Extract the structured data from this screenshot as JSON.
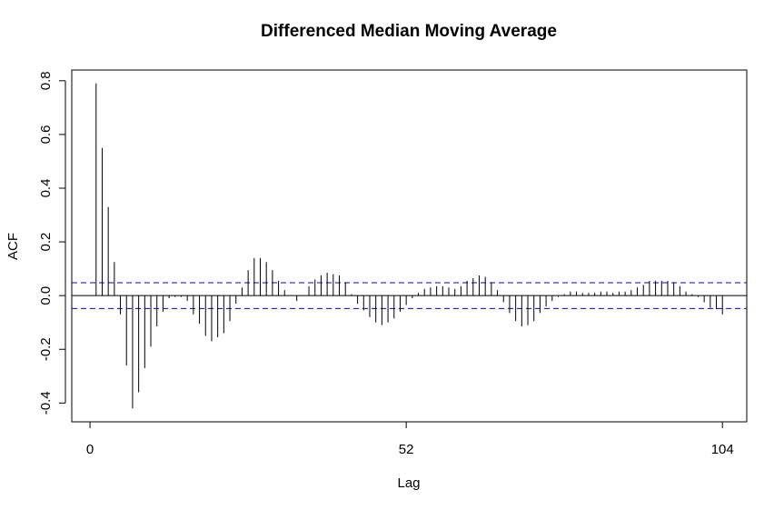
{
  "chart_data": {
    "type": "bar",
    "title": "Differenced Median Moving Average",
    "xlabel": "Lag",
    "ylabel": "ACF",
    "xlim": [
      -3,
      108
    ],
    "ylim": [
      -0.47,
      0.84
    ],
    "x_ticks": [
      0,
      52,
      104
    ],
    "y_ticks": [
      -0.4,
      -0.2,
      0.0,
      0.2,
      0.4,
      0.6,
      0.8
    ],
    "y_tick_labels": [
      "-0.4",
      "-0.2",
      "0.0",
      "0.2",
      "0.4",
      "0.6",
      "0.8"
    ],
    "zero_line": 0.0,
    "confidence_bound": 0.048,
    "colors": {
      "bars": "#000000",
      "bound_lines": "#0000cc",
      "frame": "#000000"
    },
    "lags": [
      1,
      2,
      3,
      4,
      5,
      6,
      7,
      8,
      9,
      10,
      11,
      12,
      13,
      14,
      15,
      16,
      17,
      18,
      19,
      20,
      21,
      22,
      23,
      24,
      25,
      26,
      27,
      28,
      29,
      30,
      31,
      32,
      33,
      34,
      35,
      36,
      37,
      38,
      39,
      40,
      41,
      42,
      43,
      44,
      45,
      46,
      47,
      48,
      49,
      50,
      51,
      52,
      53,
      54,
      55,
      56,
      57,
      58,
      59,
      60,
      61,
      62,
      63,
      64,
      65,
      66,
      67,
      68,
      69,
      70,
      71,
      72,
      73,
      74,
      75,
      76,
      77,
      78,
      79,
      80,
      81,
      82,
      83,
      84,
      85,
      86,
      87,
      88,
      89,
      90,
      91,
      92,
      93,
      94,
      95,
      96,
      97,
      98,
      99,
      100,
      101,
      102,
      103,
      104
    ],
    "values": [
      0.79,
      0.55,
      0.33,
      0.125,
      -0.07,
      -0.26,
      -0.42,
      -0.36,
      -0.27,
      -0.19,
      -0.115,
      -0.06,
      -0.01,
      -0.005,
      -0.005,
      -0.02,
      -0.07,
      -0.105,
      -0.15,
      -0.17,
      -0.155,
      -0.14,
      -0.095,
      -0.03,
      0.03,
      0.095,
      0.14,
      0.14,
      0.125,
      0.095,
      0.055,
      0.02,
      0.0,
      -0.02,
      0.0,
      0.035,
      0.06,
      0.075,
      0.085,
      0.08,
      0.075,
      0.05,
      0.005,
      -0.03,
      -0.055,
      -0.08,
      -0.1,
      -0.11,
      -0.1,
      -0.085,
      -0.06,
      -0.035,
      -0.01,
      0.01,
      0.025,
      0.03,
      0.035,
      0.035,
      0.03,
      0.025,
      0.035,
      0.055,
      0.065,
      0.075,
      0.07,
      0.05,
      0.02,
      -0.025,
      -0.065,
      -0.095,
      -0.115,
      -0.11,
      -0.095,
      -0.065,
      -0.04,
      -0.02,
      -0.005,
      0.005,
      0.015,
      0.015,
      0.01,
      0.01,
      0.01,
      0.015,
      0.015,
      0.01,
      0.015,
      0.015,
      0.02,
      0.03,
      0.04,
      0.055,
      0.055,
      0.055,
      0.055,
      0.05,
      0.035,
      0.015,
      0.005,
      -0.005,
      -0.025,
      -0.045,
      -0.05,
      -0.07
    ]
  }
}
